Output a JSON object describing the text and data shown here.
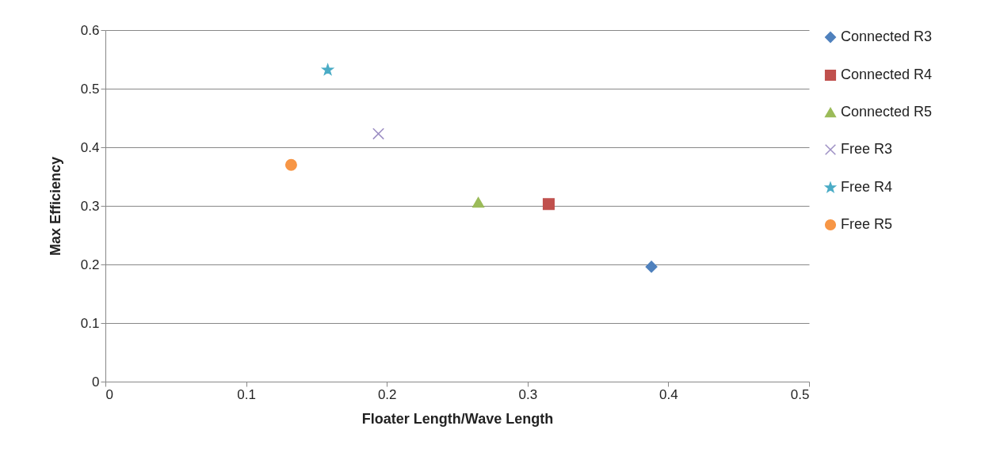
{
  "chart_data": {
    "type": "scatter",
    "xlabel": "Floater Length/Wave Length",
    "ylabel": "Max Efficiency",
    "xlim": [
      0,
      0.5
    ],
    "xticks": [
      0,
      0.1,
      0.2,
      0.3,
      0.4,
      0.5
    ],
    "ylim": [
      0,
      0.6
    ],
    "yticks": [
      0,
      0.1,
      0.2,
      0.3,
      0.4,
      0.5,
      0.6
    ],
    "grid": "y",
    "legend": "right",
    "series": [
      {
        "name": "Connected R3",
        "color": "#4f81bd",
        "marker": "diamond",
        "x": [
          0.388
        ],
        "values": [
          0.196
        ]
      },
      {
        "name": "Connected R4",
        "color": "#c0504d",
        "marker": "square",
        "x": [
          0.315
        ],
        "values": [
          0.303
        ]
      },
      {
        "name": "Connected R5",
        "color": "#9bbb59",
        "marker": "triangle",
        "x": [
          0.265
        ],
        "values": [
          0.306
        ]
      },
      {
        "name": "Free R3",
        "color": "#9d8fc4",
        "marker": "cross",
        "x": [
          0.194
        ],
        "values": [
          0.423
        ]
      },
      {
        "name": "Free R4",
        "color": "#4bacc6",
        "marker": "star",
        "x": [
          0.158
        ],
        "values": [
          0.532
        ]
      },
      {
        "name": "Free R5",
        "color": "#f79646",
        "marker": "circle",
        "x": [
          0.132
        ],
        "values": [
          0.37
        ]
      }
    ]
  }
}
